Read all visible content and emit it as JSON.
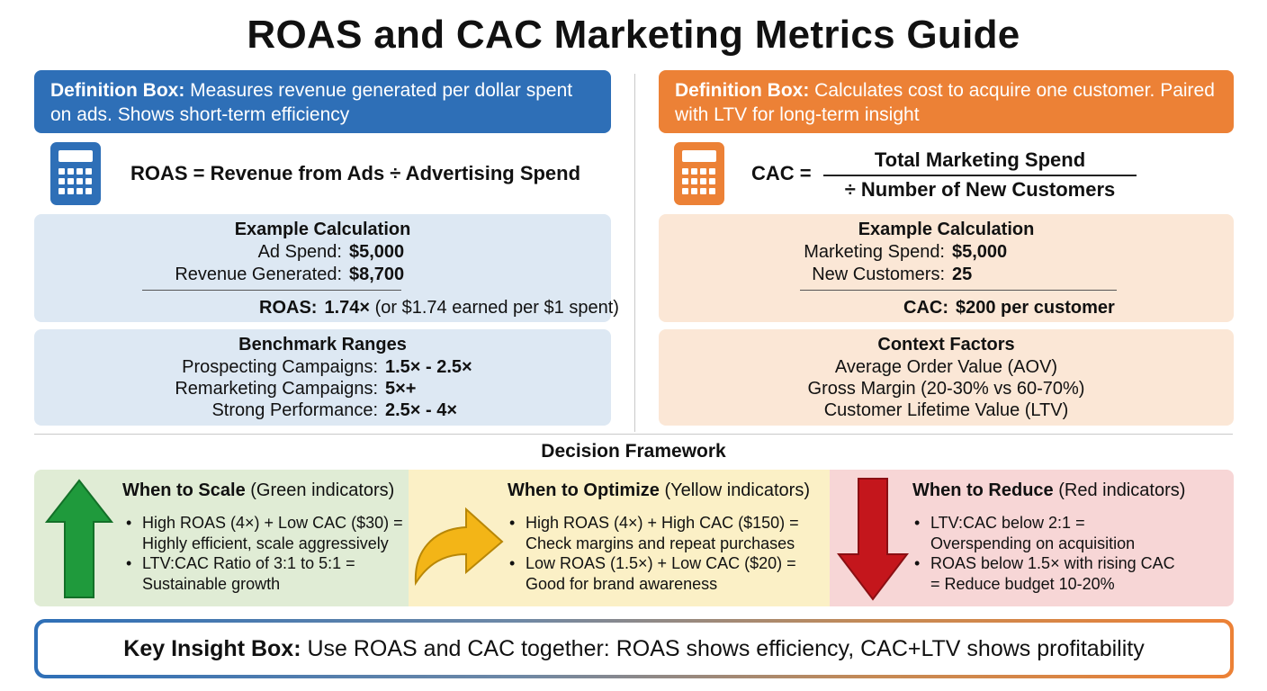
{
  "title": "ROAS and CAC Marketing Metrics Guide",
  "roas": {
    "definition_label": "Definition Box:",
    "definition_text": " Measures revenue generated per dollar spent on ads. Shows short-term efficiency",
    "icon": "calculator-icon",
    "formula": "ROAS = Revenue from Ads ÷ Advertising Spend",
    "example": {
      "title": "Example Calculation",
      "rows": [
        {
          "label": "Ad Spend:",
          "value": "$5,000"
        },
        {
          "label": "Revenue Generated:",
          "value": "$8,700"
        }
      ],
      "result_label": "ROAS:",
      "result_value": "1.74×",
      "result_note": " (or $1.74 earned per $1 spent)"
    },
    "benchmarks": {
      "title": "Benchmark Ranges",
      "rows": [
        {
          "label": "Prospecting Campaigns:",
          "value": "1.5× - 2.5×"
        },
        {
          "label": "Remarketing Campaigns:",
          "value": "5×+"
        },
        {
          "label": "Strong Performance:",
          "value": "2.5× - 4×"
        }
      ]
    }
  },
  "cac": {
    "definition_label": "Definition Box:",
    "definition_text": " Calculates cost to acquire one customer. Paired with LTV for long-term insight",
    "icon": "calculator-icon",
    "formula_lhs": "CAC =",
    "formula_numerator": "Total Marketing Spend",
    "formula_denominator": "÷ Number of New Customers",
    "example": {
      "title": "Example Calculation",
      "rows": [
        {
          "label": "Marketing Spend:",
          "value": "$5,000"
        },
        {
          "label": "New Customers:",
          "value": "25"
        }
      ],
      "result_label": "CAC:",
      "result_value": "$200 per customer"
    },
    "context": {
      "title": "Context Factors",
      "items": [
        "Average Order Value (AOV)",
        "Gross Margin (20-30% vs 60-70%)",
        "Customer Lifetime Value (LTV)"
      ]
    }
  },
  "decision": {
    "title": "Decision Framework",
    "scale": {
      "heading_bold": "When to Scale",
      "heading_rest": " (Green indicators)",
      "icon": "arrow-up-icon",
      "color": "#1f9a3c",
      "bullets": [
        [
          "High ROAS (4×) + Low CAC ($30) =",
          "Highly efficient, scale aggressively"
        ],
        [
          "LTV:CAC Ratio of 3:1 to 5:1 =",
          "Sustainable growth"
        ]
      ]
    },
    "optimize": {
      "heading_bold": "When to Optimize",
      "heading_rest": " (Yellow indicators)",
      "icon": "curved-arrow-right-icon",
      "color": "#f3b517",
      "bullets": [
        [
          "High ROAS (4×) + High CAC ($150) =",
          "Check margins and repeat purchases"
        ],
        [
          "Low ROAS (1.5×) + Low CAC ($20) =",
          "Good for brand awareness"
        ]
      ]
    },
    "reduce": {
      "heading_bold": "When to Reduce",
      "heading_rest": " (Red indicators)",
      "icon": "arrow-down-icon",
      "color": "#c4161c",
      "bullets": [
        [
          "LTV:CAC below 2:1 =",
          "Overspending on acquisition"
        ],
        [
          "ROAS below 1.5× with rising CAC",
          "= Reduce budget 10-20%"
        ]
      ]
    }
  },
  "insight": {
    "label": "Key Insight Box:",
    "text": " Use ROAS and CAC together: ROAS shows efficiency, CAC+LTV shows profitability"
  }
}
